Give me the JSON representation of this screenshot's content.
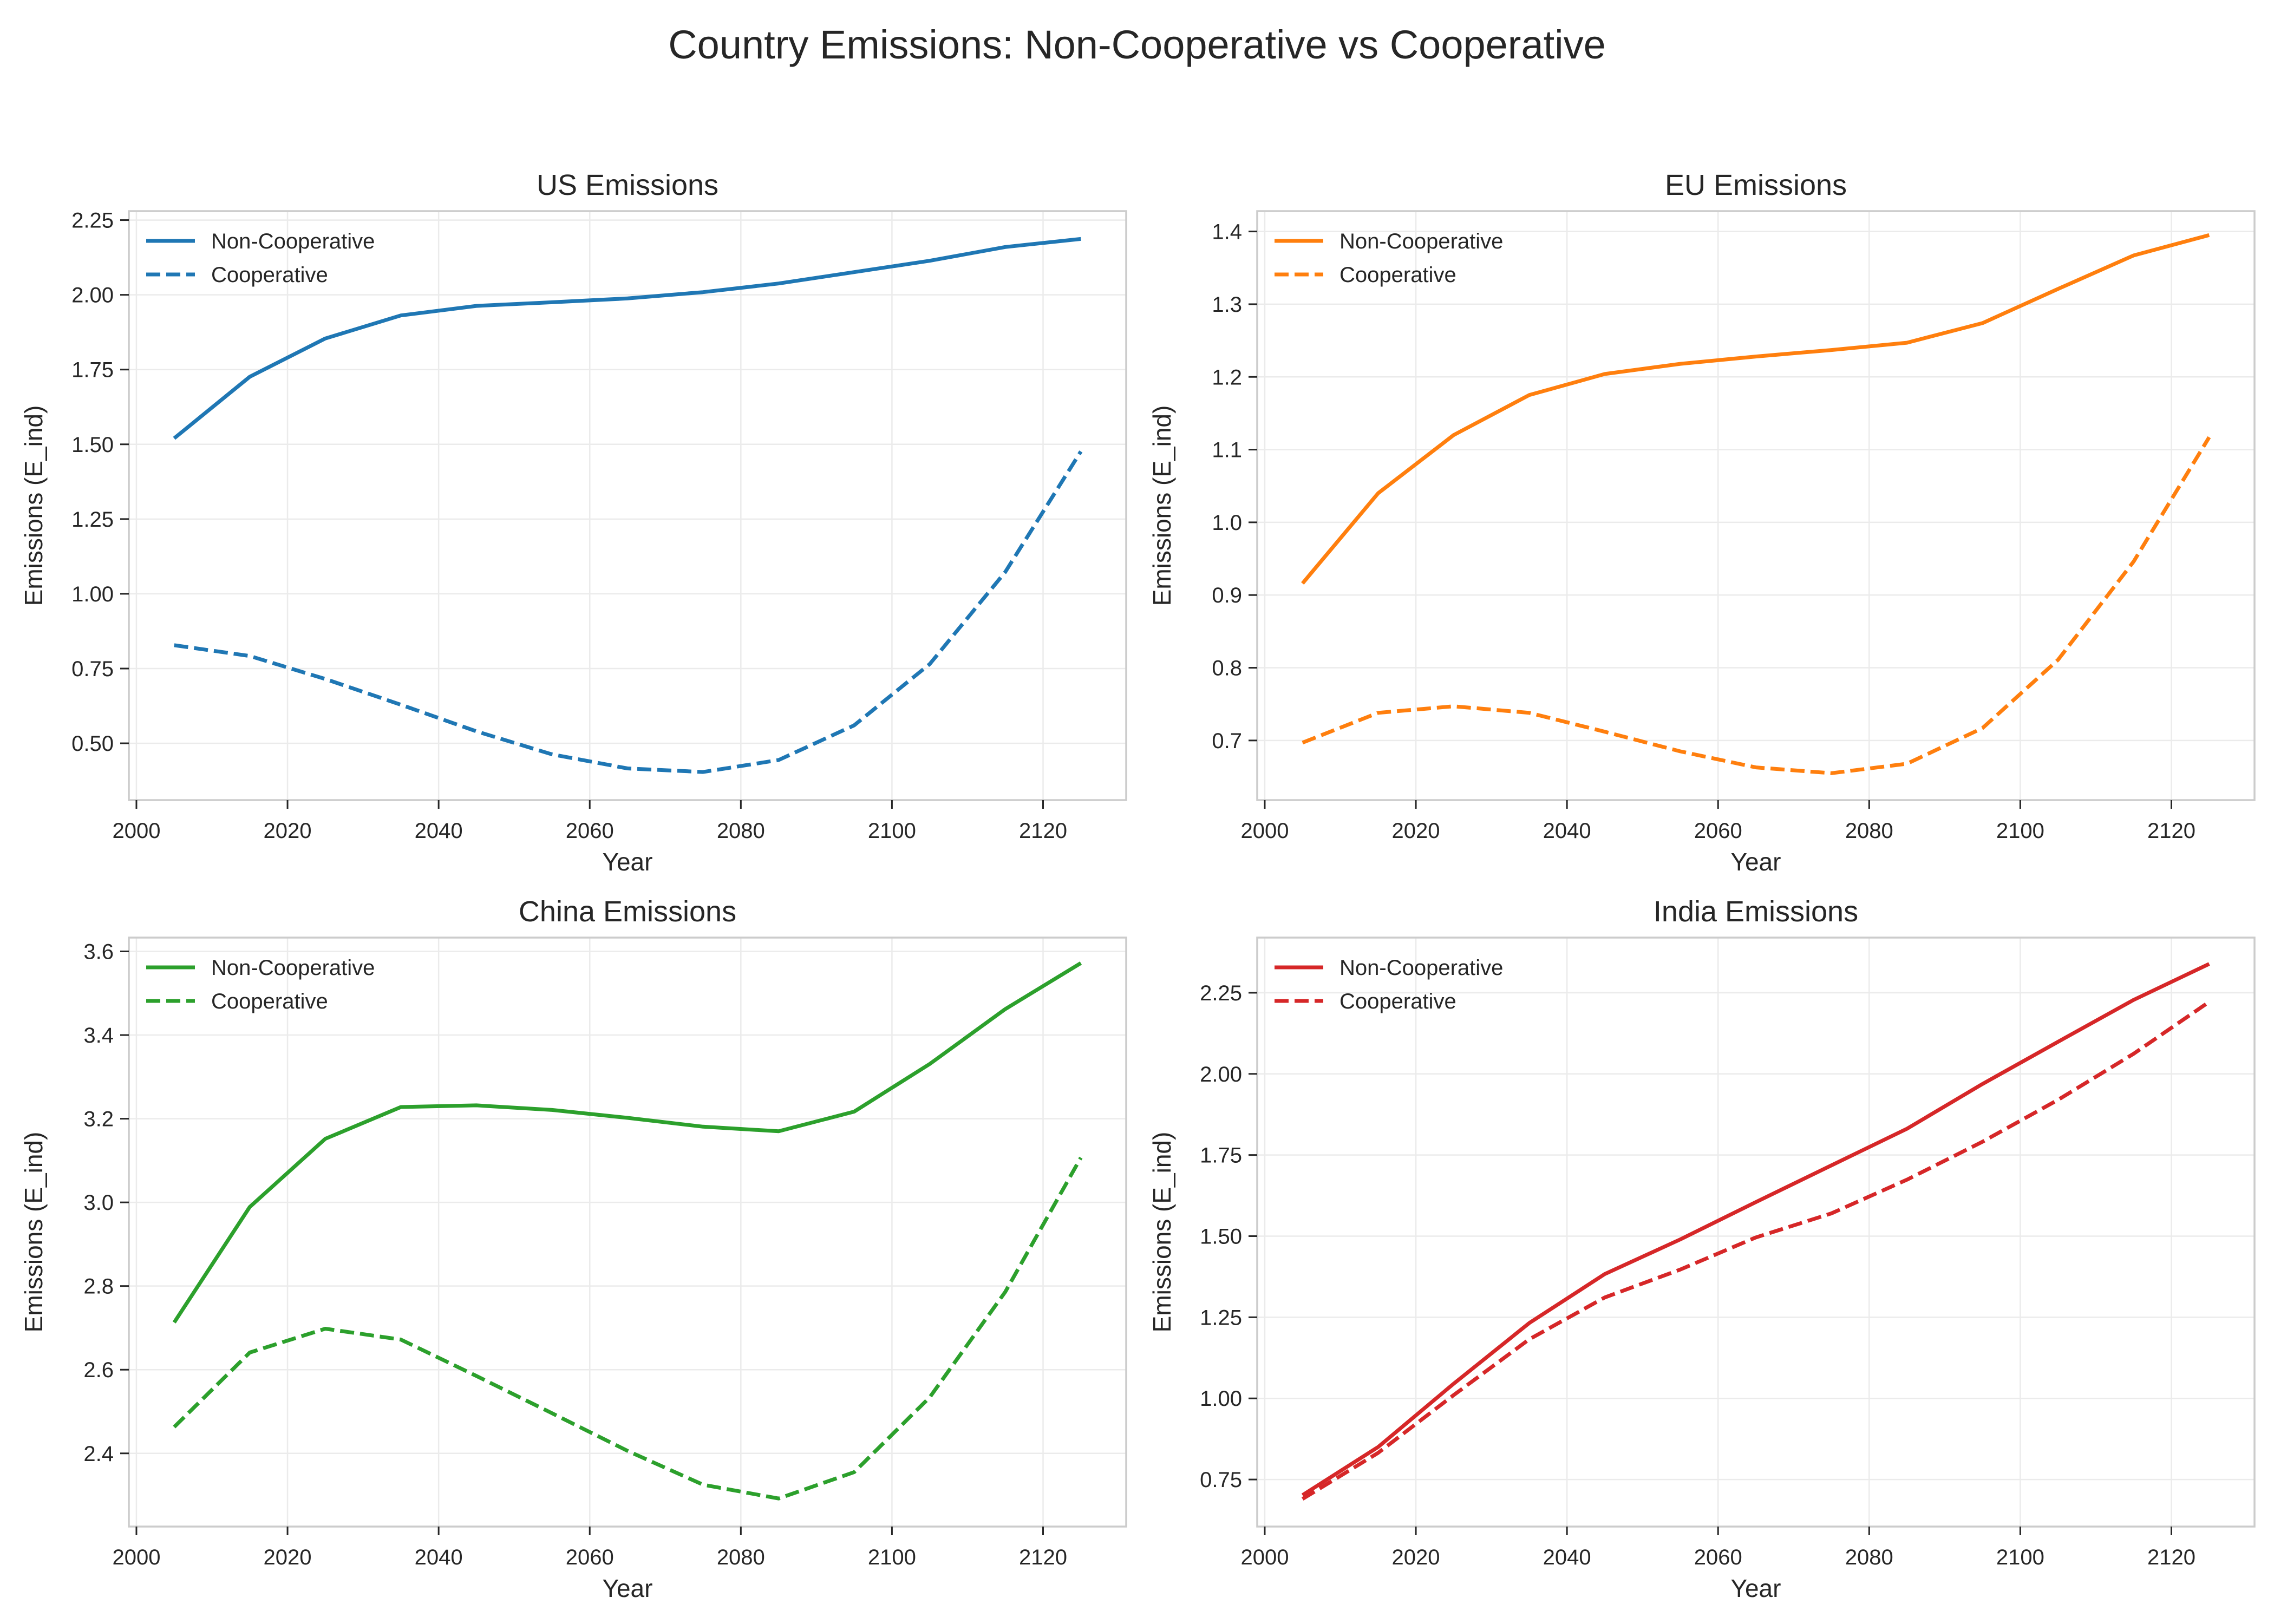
{
  "figure": {
    "title": "Country Emissions: Non-Cooperative vs Cooperative"
  },
  "chart_data": [
    {
      "type": "line",
      "title": "US Emissions",
      "xlabel": "Year",
      "ylabel": "Emissions (E_ind)",
      "color": "#1f77b4",
      "xlim": [
        1999,
        2131
      ],
      "ylim": [
        0.31,
        2.28
      ],
      "xticks": [
        2000,
        2020,
        2040,
        2060,
        2080,
        2100,
        2120
      ],
      "yticks": [
        0.5,
        0.75,
        1.0,
        1.25,
        1.5,
        1.75,
        2.0,
        2.25
      ],
      "ytick_labels": [
        "0.50",
        "0.75",
        "1.00",
        "1.25",
        "1.50",
        "1.75",
        "2.00",
        "2.25"
      ],
      "grid": true,
      "legend": "top-left",
      "x": [
        2005,
        2015,
        2025,
        2035,
        2045,
        2055,
        2065,
        2075,
        2085,
        2095,
        2105,
        2115,
        2125
      ],
      "series": [
        {
          "name": "Non-Cooperative",
          "style": "solid",
          "values": [
            1.52,
            1.726,
            1.854,
            1.931,
            1.963,
            1.975,
            1.988,
            2.009,
            2.038,
            2.076,
            2.114,
            2.16,
            2.187
          ]
        },
        {
          "name": "Cooperative",
          "style": "dashed",
          "values": [
            0.828,
            0.792,
            0.715,
            0.629,
            0.54,
            0.463,
            0.416,
            0.404,
            0.444,
            0.56,
            0.765,
            1.073,
            1.476
          ]
        }
      ]
    },
    {
      "type": "line",
      "title": "EU Emissions",
      "xlabel": "Year",
      "ylabel": "Emissions (E_ind)",
      "color": "#ff7f0e",
      "xlim": [
        1999,
        2131
      ],
      "ylim": [
        0.618,
        1.428
      ],
      "xticks": [
        2000,
        2020,
        2040,
        2060,
        2080,
        2100,
        2120
      ],
      "yticks": [
        0.7,
        0.8,
        0.9,
        1.0,
        1.1,
        1.2,
        1.3,
        1.4
      ],
      "ytick_labels": [
        "0.7",
        "0.8",
        "0.9",
        "1.0",
        "1.1",
        "1.2",
        "1.3",
        "1.4"
      ],
      "grid": true,
      "legend": "top-left",
      "x": [
        2005,
        2015,
        2025,
        2035,
        2045,
        2055,
        2065,
        2075,
        2085,
        2095,
        2105,
        2115,
        2125
      ],
      "series": [
        {
          "name": "Non-Cooperative",
          "style": "solid",
          "values": [
            0.916,
            1.04,
            1.12,
            1.175,
            1.204,
            1.218,
            1.228,
            1.237,
            1.247,
            1.274,
            1.321,
            1.367,
            1.395
          ]
        },
        {
          "name": "Cooperative",
          "style": "dashed",
          "values": [
            0.697,
            0.738,
            0.747,
            0.738,
            0.712,
            0.685,
            0.663,
            0.655,
            0.668,
            0.717,
            0.811,
            0.946,
            1.117
          ]
        }
      ]
    },
    {
      "type": "line",
      "title": "China Emissions",
      "xlabel": "Year",
      "ylabel": "Emissions (E_ind)",
      "color": "#2ca02c",
      "xlim": [
        1999,
        2131
      ],
      "ylim": [
        2.225,
        3.633
      ],
      "xticks": [
        2000,
        2020,
        2040,
        2060,
        2080,
        2100,
        2120
      ],
      "yticks": [
        2.4,
        2.6,
        2.8,
        3.0,
        3.2,
        3.4,
        3.6
      ],
      "ytick_labels": [
        "2.4",
        "2.6",
        "2.8",
        "3.0",
        "3.2",
        "3.4",
        "3.6"
      ],
      "grid": true,
      "legend": "top-left",
      "x": [
        2005,
        2015,
        2025,
        2035,
        2045,
        2055,
        2065,
        2075,
        2085,
        2095,
        2105,
        2115,
        2125
      ],
      "series": [
        {
          "name": "Non-Cooperative",
          "style": "solid",
          "values": [
            2.713,
            2.989,
            3.152,
            3.228,
            3.232,
            3.221,
            3.202,
            3.181,
            3.17,
            3.217,
            3.331,
            3.462,
            3.572
          ]
        },
        {
          "name": "Cooperative",
          "style": "dashed",
          "values": [
            2.463,
            2.641,
            2.698,
            2.672,
            2.585,
            2.496,
            2.406,
            2.325,
            2.292,
            2.355,
            2.534,
            2.786,
            3.107
          ]
        }
      ]
    },
    {
      "type": "line",
      "title": "India Emissions",
      "xlabel": "Year",
      "ylabel": "Emissions (E_ind)",
      "color": "#d62728",
      "xlim": [
        1999,
        2131
      ],
      "ylim": [
        0.605,
        2.42
      ],
      "xticks": [
        2000,
        2020,
        2040,
        2060,
        2080,
        2100,
        2120
      ],
      "yticks": [
        0.75,
        1.0,
        1.25,
        1.5,
        1.75,
        2.0,
        2.25
      ],
      "ytick_labels": [
        "0.75",
        "1.00",
        "1.25",
        "1.50",
        "1.75",
        "2.00",
        "2.25"
      ],
      "grid": true,
      "legend": "top-left",
      "x": [
        2005,
        2015,
        2025,
        2035,
        2045,
        2055,
        2065,
        2075,
        2085,
        2095,
        2105,
        2115,
        2125
      ],
      "series": [
        {
          "name": "Non-Cooperative",
          "style": "solid",
          "values": [
            0.702,
            0.85,
            1.045,
            1.232,
            1.383,
            1.49,
            1.605,
            1.718,
            1.831,
            1.969,
            2.099,
            2.228,
            2.339
          ]
        },
        {
          "name": "Cooperative",
          "style": "dashed",
          "values": [
            0.69,
            0.832,
            1.01,
            1.182,
            1.311,
            1.397,
            1.496,
            1.57,
            1.674,
            1.791,
            1.92,
            2.062,
            2.222
          ]
        }
      ]
    }
  ]
}
